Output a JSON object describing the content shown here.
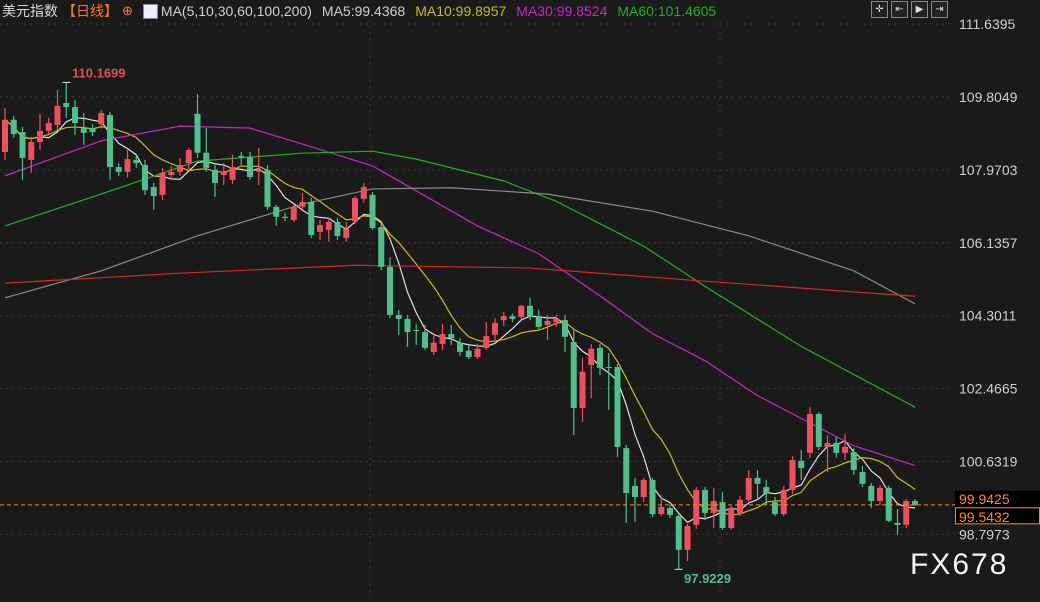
{
  "header": {
    "title": "美元指数",
    "period": "【日线】",
    "ma_label": "MA(5,10,30,60,100,200)",
    "ma5": "MA5:99.4368",
    "ma10": "MA10:99.8957",
    "ma30": "MA30:99.8524",
    "ma60": "MA60:101.4605"
  },
  "toolbar": [
    {
      "icon": "crosshair-icon"
    },
    {
      "icon": "go-start-icon"
    },
    {
      "icon": "play-icon"
    },
    {
      "icon": "go-end-icon"
    }
  ],
  "watermark": "FX678",
  "colors": {
    "up": "#f0505e",
    "down": "#4fc08d",
    "ma5": "#e0e0e0",
    "ma10": "#c8c010",
    "ma30": "#c828c8",
    "ma60": "#22b022",
    "ma100": "#8a8a8a",
    "ma200": "#d82828",
    "price_line": "#ff8c1a",
    "background": "#1a1a1a"
  },
  "chart_data": {
    "type": "candlestick",
    "title": "美元指数",
    "ylim": [
      97.6,
      112.2
    ],
    "yticks": [
      "111.6395",
      "109.8049",
      "107.9703",
      "106.1357",
      "104.3011",
      "102.4665",
      "100.6319",
      "98.7973"
    ],
    "price_labels": {
      "upper": "99.9425",
      "current": "99.5432"
    },
    "annotations": {
      "high": "110.1699",
      "low": "97.9229"
    },
    "columns": [
      "open",
      "close",
      "high",
      "low"
    ],
    "ohlc": [
      [
        108.42,
        109.23,
        109.53,
        108.22
      ],
      [
        109.23,
        108.87,
        109.33,
        108.77
      ],
      [
        108.92,
        108.27,
        109.05,
        107.72
      ],
      [
        108.22,
        108.67,
        108.8,
        107.89
      ],
      [
        108.67,
        108.95,
        109.38,
        108.47
      ],
      [
        108.95,
        109.15,
        109.28,
        108.85
      ],
      [
        109.1,
        109.58,
        109.98,
        108.97
      ],
      [
        109.65,
        109.55,
        110.17,
        109.28
      ],
      [
        109.55,
        109.15,
        109.73,
        108.85
      ],
      [
        109.02,
        108.9,
        109.4,
        108.6
      ],
      [
        109.02,
        108.92,
        109.12,
        108.82
      ],
      [
        109.12,
        109.4,
        109.48,
        109.02
      ],
      [
        109.35,
        108.04,
        109.43,
        107.72
      ],
      [
        108.04,
        107.92,
        108.14,
        107.82
      ],
      [
        107.92,
        108.24,
        108.47,
        107.77
      ],
      [
        108.22,
        108.14,
        108.32,
        108.02
      ],
      [
        108.09,
        107.46,
        108.22,
        107.34
      ],
      [
        107.54,
        107.31,
        107.64,
        106.96
      ],
      [
        107.34,
        107.89,
        108.02,
        107.21
      ],
      [
        107.84,
        107.92,
        108.07,
        107.72
      ],
      [
        107.92,
        108.09,
        108.27,
        107.82
      ],
      [
        108.14,
        108.47,
        108.52,
        107.97
      ],
      [
        109.38,
        108.4,
        109.88,
        108.27
      ],
      [
        108.4,
        108.02,
        109.02,
        107.92
      ],
      [
        107.97,
        107.64,
        108.09,
        107.29
      ],
      [
        107.84,
        107.92,
        108.14,
        107.59
      ],
      [
        107.72,
        108.04,
        108.35,
        107.62
      ],
      [
        108.32,
        108.29,
        108.42,
        108.09
      ],
      [
        108.29,
        107.79,
        108.42,
        107.72
      ],
      [
        107.92,
        107.97,
        108.52,
        107.59
      ],
      [
        107.97,
        107.04,
        108.09,
        106.96
      ],
      [
        107.04,
        106.79,
        107.09,
        106.56
      ],
      [
        106.79,
        106.76,
        106.89,
        106.68
      ],
      [
        106.71,
        107.04,
        107.09,
        106.66
      ],
      [
        107.04,
        107.16,
        107.39,
        106.96
      ],
      [
        107.16,
        106.33,
        107.26,
        106.26
      ],
      [
        106.41,
        106.58,
        106.71,
        106.21
      ],
      [
        106.46,
        106.66,
        106.76,
        106.16
      ],
      [
        106.66,
        106.31,
        106.76,
        106.21
      ],
      [
        106.26,
        106.48,
        106.66,
        106.16
      ],
      [
        106.68,
        107.26,
        107.31,
        106.61
      ],
      [
        107.24,
        107.54,
        107.64,
        107.14
      ],
      [
        107.34,
        106.51,
        107.41,
        106.46
      ],
      [
        106.53,
        105.53,
        106.61,
        105.45
      ],
      [
        105.53,
        104.32,
        105.78,
        104.24
      ],
      [
        104.32,
        104.22,
        104.45,
        103.82
      ],
      [
        104.22,
        103.89,
        104.32,
        103.52
      ],
      [
        103.94,
        103.92,
        104.09,
        103.57
      ],
      [
        103.89,
        103.49,
        104.07,
        103.44
      ],
      [
        103.39,
        103.62,
        103.87,
        103.31
      ],
      [
        103.59,
        103.84,
        104.09,
        103.44
      ],
      [
        103.84,
        103.74,
        104.07,
        103.57
      ],
      [
        103.62,
        103.39,
        103.74,
        103.29
      ],
      [
        103.42,
        103.26,
        103.57,
        103.21
      ],
      [
        103.26,
        103.47,
        103.59,
        103.21
      ],
      [
        103.49,
        103.79,
        104.14,
        103.44
      ],
      [
        103.82,
        104.12,
        104.24,
        103.69
      ],
      [
        104.19,
        104.29,
        104.4,
        104.04
      ],
      [
        104.29,
        104.22,
        104.35,
        104.14
      ],
      [
        104.27,
        104.55,
        104.57,
        104.19
      ],
      [
        104.55,
        104.27,
        104.75,
        104.19
      ],
      [
        104.27,
        104.02,
        104.45,
        103.97
      ],
      [
        104.07,
        104.17,
        104.32,
        103.69
      ],
      [
        104.14,
        104.22,
        104.32,
        104.02
      ],
      [
        104.19,
        103.77,
        104.32,
        103.39
      ],
      [
        103.64,
        101.98,
        103.97,
        101.3
      ],
      [
        101.98,
        102.89,
        103.24,
        101.63
      ],
      [
        103.06,
        103.47,
        103.59,
        102.23
      ],
      [
        103.49,
        102.99,
        103.59,
        102.81
      ],
      [
        103.01,
        102.99,
        103.36,
        101.93
      ],
      [
        103.01,
        101.0,
        103.09,
        100.75
      ],
      [
        100.97,
        99.84,
        101.05,
        99.09
      ],
      [
        100.02,
        99.74,
        100.22,
        99.11
      ],
      [
        99.74,
        100.17,
        100.22,
        99.62
      ],
      [
        100.17,
        99.31,
        100.22,
        99.24
      ],
      [
        99.31,
        99.49,
        99.79,
        99.26
      ],
      [
        99.46,
        99.29,
        99.54,
        99.21
      ],
      [
        99.26,
        98.41,
        99.31,
        97.92
      ],
      [
        98.41,
        99.01,
        99.06,
        98.13
      ],
      [
        99.04,
        99.92,
        99.99,
        98.94
      ],
      [
        99.92,
        99.34,
        99.99,
        99.16
      ],
      [
        99.34,
        99.64,
        99.97,
        98.96
      ],
      [
        99.61,
        98.96,
        99.87,
        98.91
      ],
      [
        98.96,
        99.46,
        99.51,
        98.91
      ],
      [
        99.34,
        99.67,
        99.77,
        99.26
      ],
      [
        99.67,
        100.22,
        100.42,
        99.62
      ],
      [
        100.22,
        100.07,
        100.42,
        99.67
      ],
      [
        99.99,
        99.84,
        100.17,
        99.54
      ],
      [
        99.61,
        99.31,
        99.74,
        99.26
      ],
      [
        99.31,
        99.92,
        100.02,
        99.26
      ],
      [
        99.92,
        100.67,
        100.77,
        99.82
      ],
      [
        100.65,
        100.47,
        100.92,
        100.17
      ],
      [
        100.85,
        101.83,
        102.0,
        100.72
      ],
      [
        101.83,
        101.0,
        101.88,
        100.92
      ],
      [
        101.0,
        101.1,
        101.3,
        100.37
      ],
      [
        101.1,
        100.85,
        101.25,
        100.72
      ],
      [
        100.85,
        101.0,
        101.33,
        100.67
      ],
      [
        100.87,
        100.42,
        100.97,
        100.3
      ],
      [
        100.37,
        100.07,
        100.52,
        99.99
      ],
      [
        100.02,
        99.64,
        100.09,
        99.46
      ],
      [
        99.64,
        99.97,
        100.04,
        99.54
      ],
      [
        99.97,
        99.14,
        100.02,
        99.11
      ],
      [
        99.09,
        99.04,
        99.44,
        98.79
      ],
      [
        99.04,
        99.64,
        99.69,
        98.96
      ],
      [
        99.64,
        99.54,
        99.69,
        99.52
      ]
    ],
    "moving_averages": [
      {
        "name": "MA5",
        "period": 5
      },
      {
        "name": "MA10",
        "period": 10
      },
      {
        "name": "MA30",
        "points": [
          [
            0,
            107.82
          ],
          [
            11,
            108.7
          ],
          [
            20,
            109.07
          ],
          [
            28,
            109.02
          ],
          [
            34,
            108.62
          ],
          [
            42,
            108.07
          ],
          [
            47,
            107.44
          ],
          [
            54,
            106.56
          ],
          [
            61,
            105.86
          ],
          [
            68,
            104.8
          ],
          [
            74,
            103.85
          ],
          [
            80,
            103.17
          ],
          [
            86,
            102.29
          ],
          [
            97,
            101.03
          ],
          [
            104,
            100.53
          ]
        ]
      },
      {
        "name": "MA60",
        "points": [
          [
            0,
            106.56
          ],
          [
            11,
            107.36
          ],
          [
            22,
            108.19
          ],
          [
            34,
            108.39
          ],
          [
            42,
            108.44
          ],
          [
            47,
            108.24
          ],
          [
            57,
            107.69
          ],
          [
            63,
            107.18
          ],
          [
            73,
            106.05
          ],
          [
            80,
            105.04
          ],
          [
            91,
            103.53
          ],
          [
            104,
            102.0
          ]
        ]
      },
      {
        "name": "MA100",
        "points": [
          [
            0,
            104.75
          ],
          [
            11,
            105.43
          ],
          [
            22,
            106.31
          ],
          [
            34,
            107.11
          ],
          [
            42,
            107.49
          ],
          [
            51,
            107.52
          ],
          [
            62,
            107.36
          ],
          [
            74,
            106.93
          ],
          [
            85,
            106.31
          ],
          [
            97,
            105.43
          ],
          [
            104,
            104.6
          ]
        ]
      },
      {
        "name": "MA200",
        "points": [
          [
            0,
            105.12
          ],
          [
            20,
            105.37
          ],
          [
            40,
            105.57
          ],
          [
            60,
            105.5
          ],
          [
            80,
            105.17
          ],
          [
            104,
            104.79
          ]
        ]
      }
    ]
  }
}
